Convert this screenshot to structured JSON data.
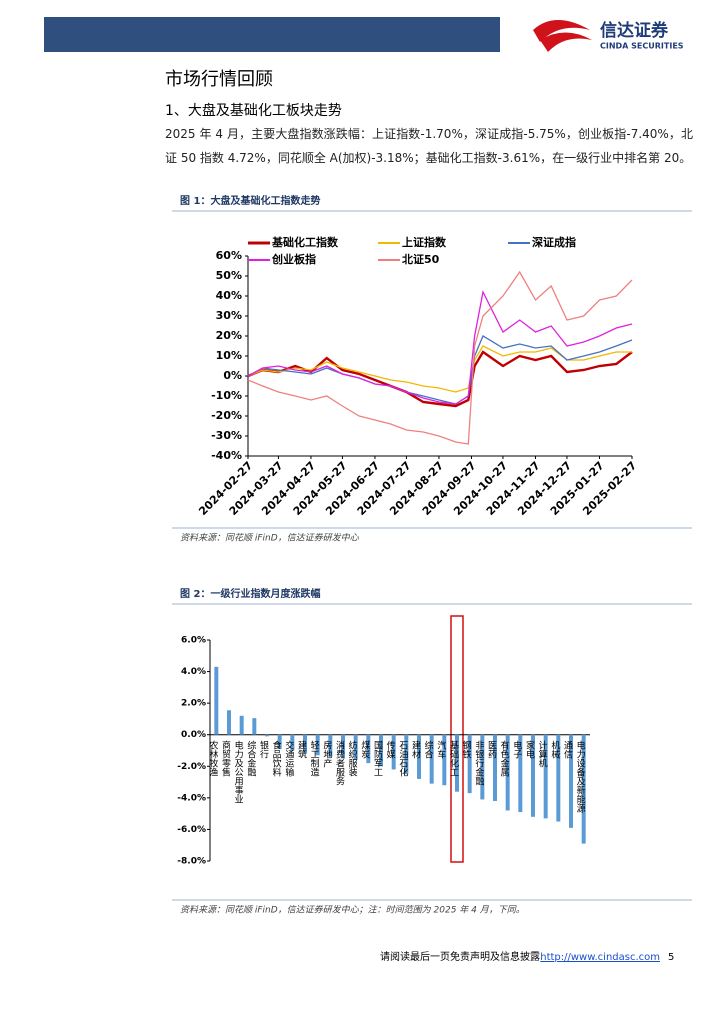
{
  "header": {
    "logo_cn": "信达证券",
    "logo_en": "CINDA SECURITIES"
  },
  "section_title": "市场行情回顾",
  "subsection_title": "1、大盘及基础化工板块走势",
  "paragraph": "2025 年 4 月，主要大盘指数涨跌幅：上证指数-1.70%，深证成指-5.75%，创业板指-7.40%，北证 50 指数 4.72%，同花顺全 A(加权)-3.18%；基础化工指数-3.61%，在一级行业中排名第 20。",
  "chart_data": [
    {
      "type": "line",
      "title": "图 1：大盘及基础化工指数走势",
      "source": "资料来源：同花顺 iFinD，信达证券研发中心",
      "x": [
        "2024-02-27",
        "2024-03-12",
        "2024-03-27",
        "2024-04-12",
        "2024-04-27",
        "2024-05-12",
        "2024-05-27",
        "2024-06-12",
        "2024-06-27",
        "2024-07-12",
        "2024-07-27",
        "2024-08-12",
        "2024-08-27",
        "2024-09-12",
        "2024-09-24",
        "2024-09-30",
        "2024-10-08",
        "2024-10-27",
        "2024-11-12",
        "2024-11-27",
        "2024-12-12",
        "2024-12-27",
        "2025-01-12",
        "2025-01-27",
        "2025-02-12",
        "2025-02-27"
      ],
      "xlim": [
        "2024-02-27",
        "2025-02-27"
      ],
      "xticks": [
        "2024-02-27",
        "2024-03-27",
        "2024-04-27",
        "2024-05-27",
        "2024-06-27",
        "2024-07-27",
        "2024-08-27",
        "2024-09-27",
        "2024-10-27",
        "2024-11-27",
        "2024-12-27",
        "2025-01-27",
        "2025-02-27"
      ],
      "ylim": [
        -40,
        60
      ],
      "yticks": [
        {
          "value": -40,
          "label": "-40%"
        },
        {
          "value": -30,
          "label": "-30%"
        },
        {
          "value": -20,
          "label": "-20%"
        },
        {
          "value": -10,
          "label": "-10%"
        },
        {
          "value": 0,
          "label": "0%"
        },
        {
          "value": 10,
          "label": "10%"
        },
        {
          "value": 20,
          "label": "20%"
        },
        {
          "value": 30,
          "label": "30%"
        },
        {
          "value": 40,
          "label": "40%"
        },
        {
          "value": 50,
          "label": "50%"
        },
        {
          "value": 60,
          "label": "60%"
        }
      ],
      "series": [
        {
          "name": "基础化工指数",
          "color": "#c00000",
          "values": [
            0,
            3,
            2,
            5,
            2,
            9,
            3,
            1,
            -2,
            -5,
            -8,
            -13,
            -14,
            -15,
            -12,
            5,
            12,
            5,
            10,
            8,
            10,
            2,
            3,
            5,
            6,
            12
          ]
        },
        {
          "name": "上证指数",
          "color": "#f2b800",
          "values": [
            0,
            3,
            2,
            4,
            3,
            7,
            4,
            2,
            0,
            -2,
            -3,
            -5,
            -6,
            -8,
            -6,
            8,
            15,
            10,
            12,
            12,
            14,
            8,
            8,
            10,
            12,
            12
          ]
        },
        {
          "name": "深证成指",
          "color": "#4472c4",
          "values": [
            0,
            4,
            3,
            2,
            1,
            4,
            1,
            -1,
            -4,
            -5,
            -8,
            -10,
            -12,
            -14,
            -10,
            10,
            20,
            14,
            16,
            14,
            15,
            8,
            10,
            12,
            15,
            18
          ]
        },
        {
          "name": "创业板指",
          "color": "#e020e0",
          "values": [
            0,
            4,
            5,
            3,
            2,
            5,
            1,
            -1,
            -4,
            -5,
            -8,
            -11,
            -13,
            -14,
            -10,
            20,
            42,
            22,
            28,
            22,
            25,
            15,
            17,
            20,
            24,
            26
          ]
        },
        {
          "name": "北证50",
          "color": "#f08080",
          "values": [
            -2,
            -5,
            -8,
            -10,
            -12,
            -10,
            -15,
            -20,
            -22,
            -24,
            -27,
            -28,
            -30,
            -33,
            -34,
            15,
            30,
            40,
            52,
            38,
            45,
            28,
            30,
            38,
            40,
            48
          ]
        }
      ]
    },
    {
      "type": "bar",
      "title": "图 2：一级行业指数月度涨跌幅",
      "source": "资料来源：同花顺 iFinD，信达证券研发中心；注：时间范围为 2025 年 4 月，下同。",
      "color": "#5b9bd5",
      "categories": [
        "农林牧渔",
        "商贸零售",
        "电力及公用事业",
        "综合金融",
        "银行",
        "食品饮料",
        "交通运输",
        "建筑",
        "轻工制造",
        "房地产",
        "消费者服务",
        "纺织服装",
        "煤炭",
        "国防军工",
        "传媒",
        "石油石化",
        "建材",
        "综合",
        "汽车",
        "基础化工",
        "钢铁",
        "非银行金融",
        "医药",
        "有色金属",
        "电子",
        "家电",
        "计算机",
        "机械",
        "通信",
        "电力设备及新能源"
      ],
      "values": [
        4.3,
        1.55,
        1.2,
        1.05,
        -0.1,
        -0.9,
        -1.0,
        -1.2,
        -1.3,
        -1.4,
        -1.5,
        -1.6,
        -1.8,
        -2.0,
        -2.2,
        -2.5,
        -2.8,
        -3.1,
        -3.2,
        -3.61,
        -3.7,
        -4.1,
        -4.2,
        -4.8,
        -4.9,
        -5.2,
        -5.3,
        -5.5,
        -5.9,
        -6.9
      ],
      "ylim": [
        -8,
        6
      ],
      "yticks": [
        {
          "value": -8,
          "label": "-8.0%"
        },
        {
          "value": -6,
          "label": "-6.0%"
        },
        {
          "value": -4,
          "label": "-4.0%"
        },
        {
          "value": -2,
          "label": "-2.0%"
        },
        {
          "value": 0,
          "label": "0.0%"
        },
        {
          "value": 2,
          "label": "2.0%"
        },
        {
          "value": 4,
          "label": "4.0%"
        },
        {
          "value": 6,
          "label": "6.0%"
        }
      ]
    }
  ],
  "footer": {
    "disclaimer": "请阅读最后一页免责声明及信息披露",
    "url": "http://www.cindasc.com",
    "page": "5"
  }
}
